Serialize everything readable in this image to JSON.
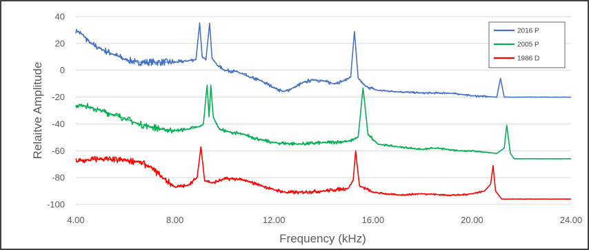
{
  "chart_data": {
    "type": "line",
    "title": "",
    "xlabel": "Frequency (kHz)",
    "ylabel": "Relaitve Amplitude",
    "xlim": [
      4,
      24
    ],
    "ylim": [
      -100,
      40
    ],
    "x_ticks": [
      "4.00",
      "8.00",
      "12.00",
      "16.00",
      "20.00",
      "24.00"
    ],
    "y_ticks": [
      "40",
      "20",
      "0",
      "-20",
      "-40",
      "-60",
      "-80",
      "-100"
    ],
    "grid": "horizontal",
    "legend": "top-right",
    "series": [
      {
        "name": "2016 P",
        "color": "#4472C4",
        "points": [
          [
            4.0,
            30
          ],
          [
            4.3,
            26
          ],
          [
            4.6,
            20
          ],
          [
            5.0,
            16
          ],
          [
            5.5,
            12
          ],
          [
            6.0,
            8
          ],
          [
            6.5,
            6
          ],
          [
            7.0,
            6
          ],
          [
            7.5,
            6
          ],
          [
            8.0,
            6
          ],
          [
            8.5,
            7
          ],
          [
            8.85,
            8
          ],
          [
            9.0,
            35
          ],
          [
            9.1,
            10
          ],
          [
            9.25,
            8
          ],
          [
            9.4,
            35
          ],
          [
            9.5,
            9
          ],
          [
            9.7,
            4
          ],
          [
            10.0,
            0
          ],
          [
            10.5,
            -1
          ],
          [
            11.0,
            -5
          ],
          [
            11.5,
            -8
          ],
          [
            12.0,
            -13
          ],
          [
            12.4,
            -16
          ],
          [
            12.8,
            -13
          ],
          [
            13.2,
            -9
          ],
          [
            13.6,
            -7
          ],
          [
            14.0,
            -8
          ],
          [
            14.4,
            -10
          ],
          [
            14.8,
            -8
          ],
          [
            15.1,
            -5
          ],
          [
            15.25,
            29
          ],
          [
            15.4,
            -6
          ],
          [
            15.7,
            -12
          ],
          [
            16.2,
            -15
          ],
          [
            17.0,
            -16
          ],
          [
            18.0,
            -17
          ],
          [
            19.0,
            -17
          ],
          [
            19.6,
            -18
          ],
          [
            20.0,
            -19
          ],
          [
            21.0,
            -20
          ],
          [
            21.15,
            -6
          ],
          [
            21.3,
            -20
          ],
          [
            24.0,
            -20
          ]
        ]
      },
      {
        "name": "2005 P",
        "color": "#00B050",
        "points": [
          [
            4.0,
            -27
          ],
          [
            4.3,
            -26
          ],
          [
            4.6,
            -28
          ],
          [
            5.0,
            -30
          ],
          [
            5.5,
            -33
          ],
          [
            6.0,
            -36
          ],
          [
            6.5,
            -40
          ],
          [
            7.0,
            -42
          ],
          [
            7.5,
            -44
          ],
          [
            8.0,
            -45
          ],
          [
            8.5,
            -44
          ],
          [
            9.0,
            -42
          ],
          [
            9.15,
            -40
          ],
          [
            9.3,
            -11
          ],
          [
            9.38,
            -35
          ],
          [
            9.45,
            -11
          ],
          [
            9.55,
            -35
          ],
          [
            9.8,
            -44
          ],
          [
            10.2,
            -46
          ],
          [
            10.8,
            -48
          ],
          [
            11.5,
            -52
          ],
          [
            12.0,
            -54
          ],
          [
            13.0,
            -55
          ],
          [
            14.0,
            -54
          ],
          [
            15.0,
            -53
          ],
          [
            15.4,
            -50
          ],
          [
            15.6,
            -13
          ],
          [
            15.8,
            -48
          ],
          [
            16.2,
            -55
          ],
          [
            17.0,
            -57
          ],
          [
            18.0,
            -59
          ],
          [
            18.5,
            -58
          ],
          [
            19.0,
            -59
          ],
          [
            19.5,
            -60
          ],
          [
            20.0,
            -60
          ],
          [
            20.5,
            -61
          ],
          [
            21.0,
            -62
          ],
          [
            21.3,
            -58
          ],
          [
            21.4,
            -41
          ],
          [
            21.55,
            -62
          ],
          [
            21.7,
            -66
          ],
          [
            24.0,
            -66
          ]
        ]
      },
      {
        "name": "1986 D",
        "color": "#FF0000",
        "points": [
          [
            4.0,
            -68
          ],
          [
            4.5,
            -67
          ],
          [
            5.0,
            -66
          ],
          [
            5.5,
            -67
          ],
          [
            6.0,
            -67
          ],
          [
            6.5,
            -68
          ],
          [
            7.0,
            -72
          ],
          [
            7.5,
            -80
          ],
          [
            8.0,
            -87
          ],
          [
            8.5,
            -86
          ],
          [
            8.9,
            -80
          ],
          [
            9.05,
            -57
          ],
          [
            9.2,
            -82
          ],
          [
            9.5,
            -84
          ],
          [
            10.0,
            -81
          ],
          [
            10.5,
            -81
          ],
          [
            11.0,
            -83
          ],
          [
            11.5,
            -86
          ],
          [
            12.0,
            -89
          ],
          [
            12.5,
            -91
          ],
          [
            13.0,
            -91
          ],
          [
            14.0,
            -90
          ],
          [
            15.0,
            -88
          ],
          [
            15.2,
            -82
          ],
          [
            15.3,
            -60
          ],
          [
            15.45,
            -86
          ],
          [
            16.0,
            -91
          ],
          [
            17.0,
            -93
          ],
          [
            18.0,
            -92
          ],
          [
            19.0,
            -93
          ],
          [
            19.5,
            -93
          ],
          [
            20.0,
            -92
          ],
          [
            20.5,
            -90
          ],
          [
            20.75,
            -85
          ],
          [
            20.85,
            -71
          ],
          [
            20.95,
            -90
          ],
          [
            21.2,
            -96
          ],
          [
            24.0,
            -96
          ]
        ]
      }
    ]
  }
}
